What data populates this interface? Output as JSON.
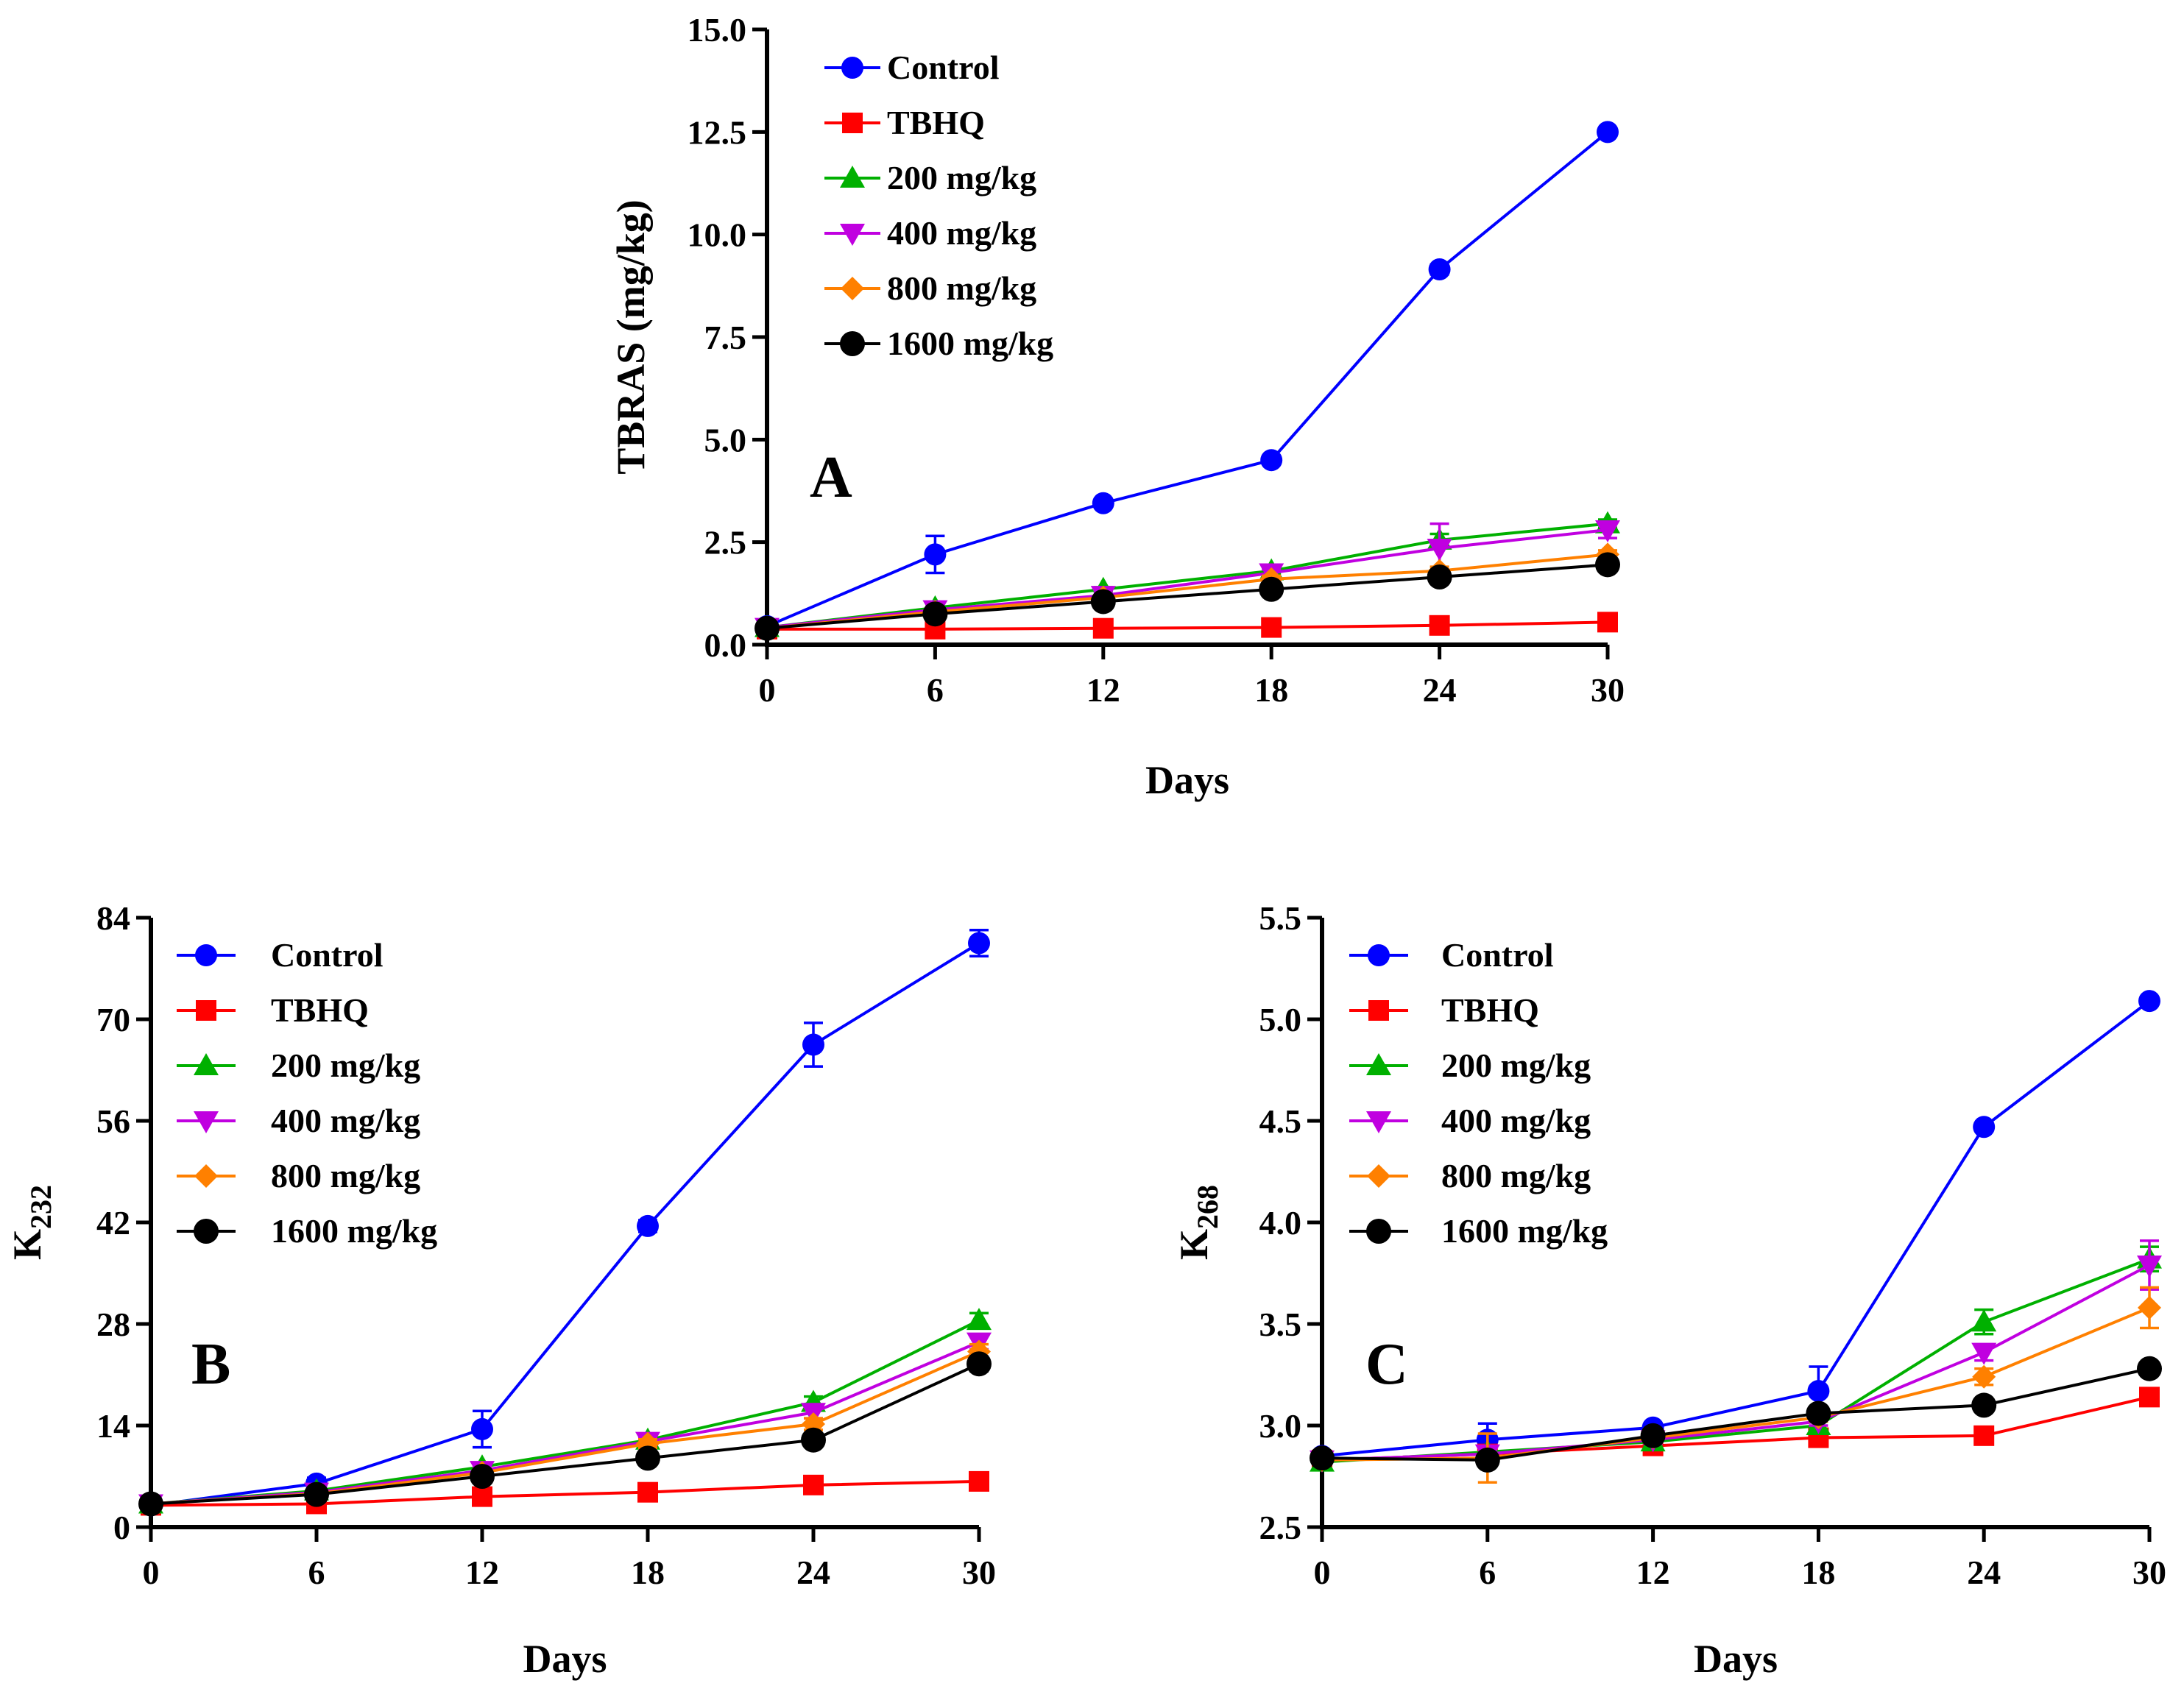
{
  "colors": {
    "Control": "#0000ff",
    "TBHQ": "#ff0000",
    "200 mg/kg": "#00b000",
    "400 mg/kg": "#c000e0",
    "800 mg/kg": "#ff8000",
    "1600 mg/kg": "#000000"
  },
  "markers": {
    "Control": "circle",
    "TBHQ": "square",
    "200 mg/kg": "triangle-up",
    "400 mg/kg": "triangle-down",
    "800 mg/kg": "diamond",
    "1600 mg/kg": "circle-large"
  },
  "chart_data": [
    {
      "panel": "A",
      "type": "line",
      "title": "",
      "xlabel": "Days",
      "ylabel": "TBRAS (mg/kg)",
      "ylabel_sub": "",
      "xlim": [
        0,
        30
      ],
      "ylim": [
        0,
        15
      ],
      "xticks": [
        0,
        6,
        12,
        18,
        24,
        30
      ],
      "xtick_labels": [
        "0",
        "6",
        "12",
        "18",
        "24",
        "30"
      ],
      "yticks": [
        0,
        2.5,
        5,
        7.5,
        10,
        12.5,
        15
      ],
      "ytick_labels": [
        "0.0",
        "2.5",
        "5.0",
        "7.5",
        "10.0",
        "12.5",
        "15.0"
      ],
      "legend_placement": "top-left",
      "x": [
        0,
        6,
        12,
        18,
        24,
        30
      ],
      "series": [
        {
          "name": "Control",
          "values": [
            0.45,
            2.2,
            3.45,
            4.5,
            9.15,
            12.5
          ],
          "errors": [
            0.05,
            0.45,
            0.1,
            0.1,
            0.12,
            0.1
          ]
        },
        {
          "name": "TBHQ",
          "values": [
            0.38,
            0.38,
            0.4,
            0.42,
            0.47,
            0.55
          ],
          "errors": [
            0.02,
            0.02,
            0.02,
            0.02,
            0.03,
            0.03
          ]
        },
        {
          "name": "200 mg/kg",
          "values": [
            0.42,
            0.9,
            1.35,
            1.8,
            2.55,
            2.95
          ],
          "errors": [
            0.03,
            0.05,
            0.05,
            0.08,
            0.15,
            0.1
          ]
        },
        {
          "name": "400 mg/kg",
          "values": [
            0.42,
            0.85,
            1.2,
            1.75,
            2.35,
            2.8
          ],
          "errors": [
            0.03,
            0.05,
            0.05,
            0.08,
            0.6,
            0.2
          ]
        },
        {
          "name": "800 mg/kg",
          "values": [
            0.4,
            0.8,
            1.15,
            1.6,
            1.8,
            2.2
          ],
          "errors": [
            0.03,
            0.05,
            0.05,
            0.08,
            0.1,
            0.1
          ]
        },
        {
          "name": "1600 mg/kg",
          "values": [
            0.4,
            0.75,
            1.05,
            1.35,
            1.65,
            1.95
          ],
          "errors": [
            0.03,
            0.05,
            0.05,
            0.08,
            0.1,
            0.08
          ]
        }
      ]
    },
    {
      "panel": "B",
      "type": "line",
      "title": "",
      "xlabel": "Days",
      "ylabel": "K",
      "ylabel_sub": "232",
      "xlim": [
        0,
        30
      ],
      "ylim": [
        0,
        84
      ],
      "xticks": [
        0,
        6,
        12,
        18,
        24,
        30
      ],
      "xtick_labels": [
        "0",
        "6",
        "12",
        "18",
        "24",
        "30"
      ],
      "yticks": [
        0,
        14,
        28,
        42,
        56,
        70,
        84
      ],
      "ytick_labels": [
        "0",
        "14",
        "28",
        "42",
        "56",
        "70",
        "84"
      ],
      "legend_placement": "top-left",
      "x": [
        0,
        6,
        12,
        18,
        24,
        30
      ],
      "series": [
        {
          "name": "Control",
          "values": [
            3,
            6,
            13.5,
            41.5,
            66.5,
            80.5
          ],
          "errors": [
            0.5,
            0.8,
            2.5,
            0.8,
            3,
            1.8
          ]
        },
        {
          "name": "TBHQ",
          "values": [
            3,
            3.2,
            4.2,
            4.8,
            5.8,
            6.3
          ],
          "errors": [
            0.3,
            0.3,
            0.4,
            0.3,
            0.3,
            0.3
          ]
        },
        {
          "name": "200 mg/kg",
          "values": [
            3.2,
            5,
            8.3,
            12,
            17.2,
            28.5
          ],
          "errors": [
            0.3,
            0.4,
            0.5,
            0.6,
            0.8,
            1
          ]
        },
        {
          "name": "400 mg/kg",
          "values": [
            3.2,
            4.8,
            7.8,
            11.8,
            15.8,
            25.5
          ],
          "errors": [
            0.3,
            0.4,
            0.5,
            0.6,
            0.8,
            1
          ]
        },
        {
          "name": "800 mg/kg",
          "values": [
            3.2,
            4.6,
            7.5,
            11.5,
            14.2,
            24.2
          ],
          "errors": [
            0.3,
            0.4,
            0.5,
            0.6,
            0.8,
            1
          ]
        },
        {
          "name": "1600 mg/kg",
          "values": [
            3.2,
            4.5,
            7,
            9.5,
            12,
            22.5
          ],
          "errors": [
            0.3,
            0.4,
            0.5,
            0.6,
            0.8,
            1
          ]
        }
      ]
    },
    {
      "panel": "C",
      "type": "line",
      "title": "",
      "xlabel": "Days",
      "ylabel": "K",
      "ylabel_sub": "268",
      "xlim": [
        0,
        30
      ],
      "ylim": [
        2.5,
        5.5
      ],
      "xticks": [
        0,
        6,
        12,
        18,
        24,
        30
      ],
      "xtick_labels": [
        "0",
        "6",
        "12",
        "18",
        "24",
        "30"
      ],
      "yticks": [
        2.5,
        3.0,
        3.5,
        4.0,
        4.5,
        5.0,
        5.5
      ],
      "ytick_labels": [
        "2.5",
        "3.0",
        "3.5",
        "4.0",
        "4.5",
        "5.0",
        "5.5"
      ],
      "legend_placement": "top-left",
      "x": [
        0,
        6,
        12,
        18,
        24,
        30
      ],
      "series": [
        {
          "name": "Control",
          "values": [
            2.85,
            2.93,
            2.99,
            3.17,
            4.47,
            5.09
          ],
          "errors": [
            0.02,
            0.08,
            0.02,
            0.12,
            0.02,
            0.02
          ]
        },
        {
          "name": "TBHQ",
          "values": [
            2.83,
            2.86,
            2.9,
            2.94,
            2.95,
            3.14
          ],
          "errors": [
            0.01,
            0.01,
            0.01,
            0.01,
            0.01,
            0.03
          ]
        },
        {
          "name": "200 mg/kg",
          "values": [
            2.82,
            2.87,
            2.92,
            3.0,
            3.51,
            3.82
          ],
          "errors": [
            0.01,
            0.02,
            0.02,
            0.02,
            0.06,
            0.06
          ]
        },
        {
          "name": "400 mg/kg",
          "values": [
            2.83,
            2.86,
            2.93,
            3.02,
            3.36,
            3.79
          ],
          "errors": [
            0.01,
            0.02,
            0.02,
            0.02,
            0.04,
            0.12
          ]
        },
        {
          "name": "800 mg/kg",
          "values": [
            2.83,
            2.84,
            2.94,
            3.04,
            3.24,
            3.58
          ],
          "errors": [
            0.01,
            0.12,
            0.02,
            0.02,
            0.04,
            0.1
          ]
        },
        {
          "name": "1600 mg/kg",
          "values": [
            2.84,
            2.83,
            2.95,
            3.06,
            3.1,
            3.28
          ],
          "errors": [
            0.01,
            0.03,
            0.02,
            0.02,
            0.02,
            0.02
          ]
        }
      ]
    }
  ]
}
